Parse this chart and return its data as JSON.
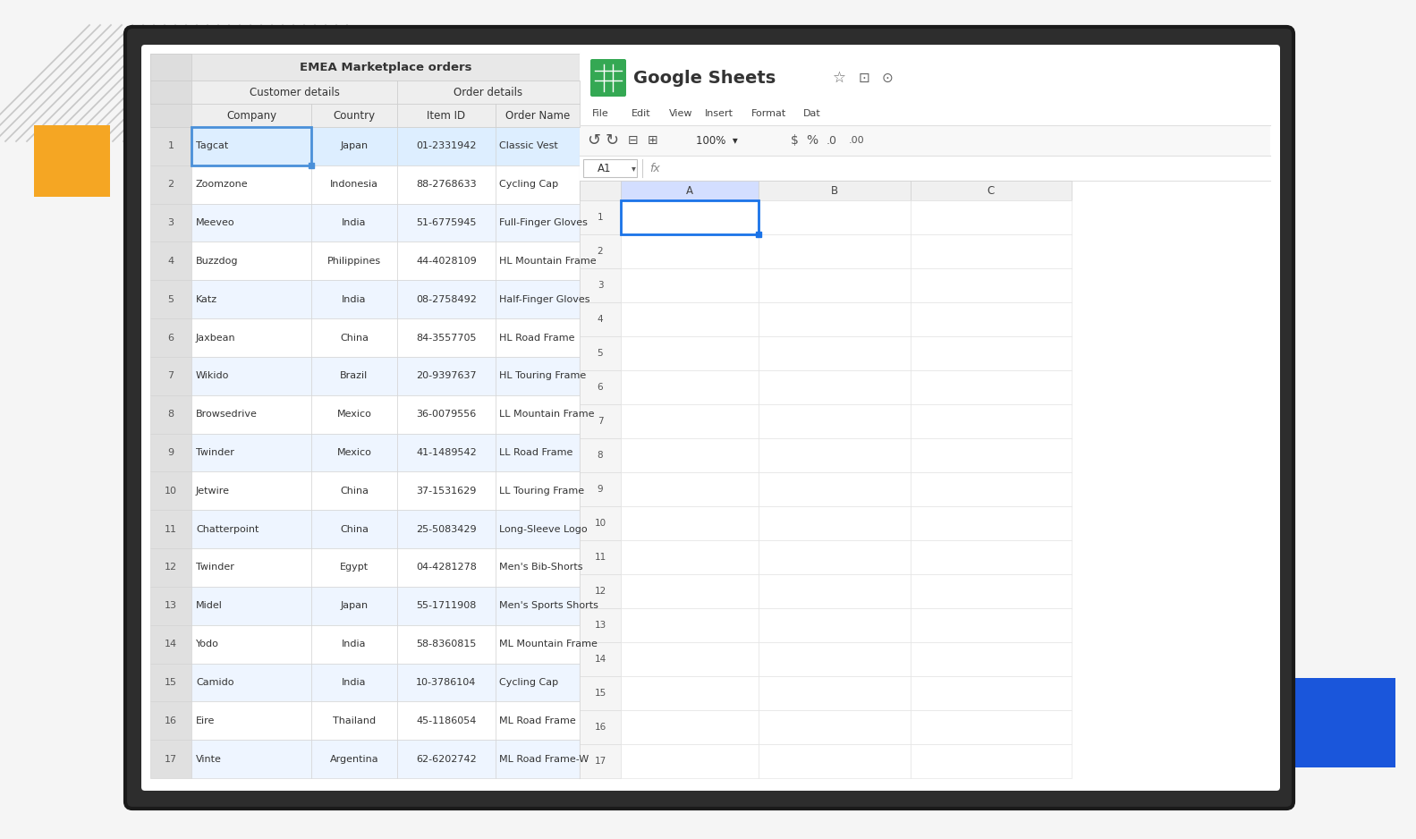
{
  "bg_color": "#f5f5f5",
  "tablet_bg": "#2a2a2a",
  "handsontable": {
    "title": "EMEA Marketplace orders",
    "group_headers": [
      "Customer details",
      "Order details"
    ],
    "col_headers": [
      "Company",
      "Country",
      "Item ID",
      "Order Name"
    ],
    "row_nums": [
      1,
      2,
      3,
      4,
      5,
      6,
      7,
      8,
      9,
      10,
      11,
      12,
      13,
      14,
      15,
      16,
      17
    ],
    "companies": [
      "Tagcat",
      "Zoomzone",
      "Meeveo",
      "Buzzdog",
      "Katz",
      "Jaxbean",
      "Wikido",
      "Browsedrive",
      "Twinder",
      "Jetwire",
      "Chatterpoint",
      "Twinder",
      "Midel",
      "Yodo",
      "Camido",
      "Eire",
      "Vinte"
    ],
    "countries": [
      "Japan",
      "Indonesia",
      "India",
      "Philippines",
      "India",
      "China",
      "Brazil",
      "Mexico",
      "Mexico",
      "China",
      "China",
      "Egypt",
      "Japan",
      "India",
      "India",
      "Thailand",
      "Argentina"
    ],
    "item_ids": [
      "01-2331942",
      "88-2768633",
      "51-6775945",
      "44-4028109",
      "08-2758492",
      "84-3557705",
      "20-9397637",
      "36-0079556",
      "41-1489542",
      "37-1531629",
      "25-5083429",
      "04-4281278",
      "55-1711908",
      "58-8360815",
      "10-3786104",
      "45-1186054",
      "62-6202742"
    ],
    "order_names": [
      "Classic Vest",
      "Cycling Cap",
      "Full-Finger Gloves",
      "HL Mountain Frame",
      "Half-Finger Gloves",
      "HL Road Frame",
      "HL Touring Frame",
      "LL Mountain Frame",
      "LL Road Frame",
      "LL Touring Frame",
      "Long-Sleeve Logo",
      "Men's Bib-Shorts",
      "Men's Sports Shorts",
      "ML Mountain Frame",
      "Cycling Cap",
      "ML Road Frame",
      "ML Road Frame-W"
    ]
  },
  "google_sheets": {
    "title": "Google Sheets",
    "menu_items": [
      "File",
      "Edit",
      "View",
      "Insert",
      "Format",
      "Dat"
    ],
    "cell_ref": "A1",
    "col_headers": [
      "A",
      "B",
      "C"
    ],
    "row_count": 17
  },
  "decorations": {
    "yellow_color": "#f5a623",
    "cyan_color": "#00d4e8",
    "blue_color": "#1a56db",
    "hatch_color": "#999999"
  }
}
